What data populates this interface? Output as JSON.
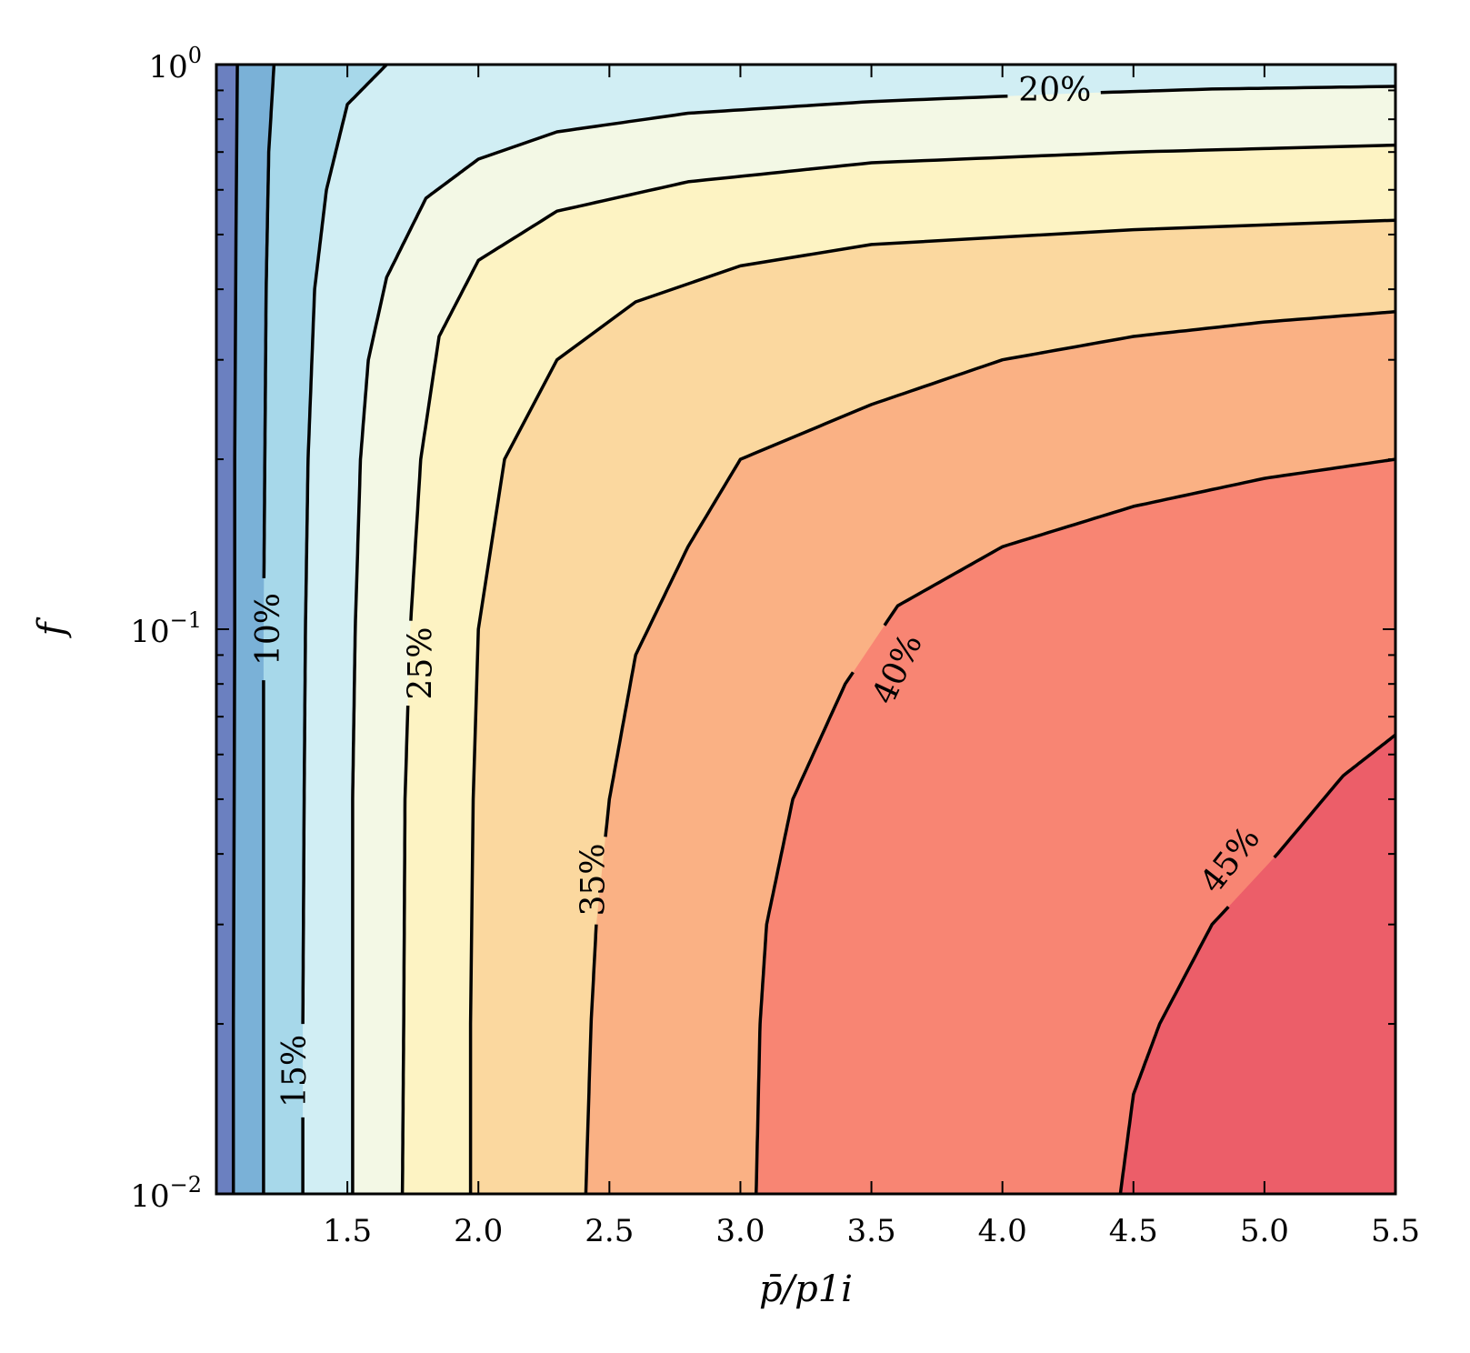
{
  "chart_data": {
    "type": "contour",
    "xlabel": "p̄/p1i",
    "ylabel": "f",
    "xlim": [
      1.0,
      5.5
    ],
    "ylim": [
      0.01,
      1.0
    ],
    "yscale": "log",
    "x_ticks": [
      1.5,
      2.0,
      2.5,
      3.0,
      3.5,
      4.0,
      4.5,
      5.0,
      5.5
    ],
    "x_tick_labels": [
      "1.5",
      "2.0",
      "2.5",
      "3.0",
      "3.5",
      "4.0",
      "4.5",
      "5.0",
      "5.5"
    ],
    "y_ticks": [
      0.01,
      0.1,
      1.0
    ],
    "y_tick_labels": [
      {
        "base": "10",
        "exp": "−2"
      },
      {
        "base": "10",
        "exp": "−1"
      },
      {
        "base": "10",
        "exp": "0"
      }
    ],
    "grid": false,
    "colors": {
      "lt5": "#6b80c0",
      "5-10": "#7ab1d7",
      "10-15": "#a7d8ea",
      "15-20": "#d1eef4",
      "20-25": "#f3f8e5",
      "25-30": "#fdf3c3",
      "30-35": "#fbd89f",
      "35-40": "#fab184",
      "40-45": "#f88573",
      "gt45": "#ec5e69"
    },
    "levels": [
      {
        "level": 5,
        "label": "",
        "points": [
          [
            1.08,
            1.0
          ],
          [
            1.075,
            0.5
          ],
          [
            1.07,
            0.2
          ],
          [
            1.07,
            0.1
          ],
          [
            1.068,
            0.05
          ],
          [
            1.065,
            0.02
          ],
          [
            1.065,
            0.01
          ]
        ]
      },
      {
        "level": 10,
        "label": "10%",
        "label_at": [
          1.2,
          0.1
        ],
        "label_angle": -90,
        "points": [
          [
            1.22,
            1.0
          ],
          [
            1.2,
            0.7
          ],
          [
            1.19,
            0.4
          ],
          [
            1.185,
            0.2
          ],
          [
            1.18,
            0.1
          ],
          [
            1.18,
            0.05
          ],
          [
            1.18,
            0.02
          ],
          [
            1.18,
            0.01
          ]
        ]
      },
      {
        "level": 15,
        "label": "15%",
        "label_at": [
          1.3,
          0.0165
        ],
        "label_angle": -90,
        "points": [
          [
            1.65,
            1.0
          ],
          [
            1.5,
            0.85
          ],
          [
            1.42,
            0.6
          ],
          [
            1.375,
            0.4
          ],
          [
            1.35,
            0.2
          ],
          [
            1.34,
            0.1
          ],
          [
            1.335,
            0.05
          ],
          [
            1.33,
            0.02
          ],
          [
            1.33,
            0.01
          ]
        ]
      },
      {
        "level": 20,
        "label": "20%",
        "label_at": [
          4.2,
          0.9
        ],
        "label_angle": 0,
        "points": [
          [
            5.5,
            0.915
          ],
          [
            4.8,
            0.905
          ],
          [
            4.3,
            0.89
          ],
          [
            3.5,
            0.86
          ],
          [
            2.8,
            0.82
          ],
          [
            2.3,
            0.76
          ],
          [
            2.0,
            0.68
          ],
          [
            1.8,
            0.58
          ],
          [
            1.65,
            0.42
          ],
          [
            1.58,
            0.3
          ],
          [
            1.55,
            0.2
          ],
          [
            1.53,
            0.1
          ],
          [
            1.52,
            0.05
          ],
          [
            1.52,
            0.02
          ],
          [
            1.52,
            0.01
          ]
        ]
      },
      {
        "level": 25,
        "label": "25%",
        "label_at": [
          1.78,
          0.087
        ],
        "label_angle": -90,
        "points": [
          [
            5.5,
            0.72
          ],
          [
            4.5,
            0.7
          ],
          [
            3.5,
            0.67
          ],
          [
            2.8,
            0.62
          ],
          [
            2.3,
            0.55
          ],
          [
            2.0,
            0.45
          ],
          [
            1.85,
            0.33
          ],
          [
            1.78,
            0.2
          ],
          [
            1.74,
            0.1
          ],
          [
            1.72,
            0.05
          ],
          [
            1.715,
            0.02
          ],
          [
            1.71,
            0.01
          ]
        ]
      },
      {
        "level": 30,
        "label": "",
        "points": [
          [
            5.5,
            0.53
          ],
          [
            4.5,
            0.51
          ],
          [
            3.5,
            0.48
          ],
          [
            3.0,
            0.44
          ],
          [
            2.6,
            0.38
          ],
          [
            2.3,
            0.3
          ],
          [
            2.1,
            0.2
          ],
          [
            2.0,
            0.1
          ],
          [
            1.98,
            0.05
          ],
          [
            1.97,
            0.02
          ],
          [
            1.97,
            0.01
          ]
        ]
      },
      {
        "level": 35,
        "label": "35%",
        "label_at": [
          2.44,
          0.036
        ],
        "label_angle": -90,
        "points": [
          [
            5.5,
            0.365
          ],
          [
            5.0,
            0.35
          ],
          [
            4.5,
            0.33
          ],
          [
            4.0,
            0.3
          ],
          [
            3.5,
            0.25
          ],
          [
            3.0,
            0.2
          ],
          [
            2.8,
            0.14
          ],
          [
            2.6,
            0.09
          ],
          [
            2.5,
            0.05
          ],
          [
            2.45,
            0.03
          ],
          [
            2.43,
            0.02
          ],
          [
            2.41,
            0.01
          ]
        ]
      },
      {
        "level": 40,
        "label": "40%",
        "label_at": [
          3.6,
          0.085
        ],
        "label_angle": -65,
        "points": [
          [
            5.5,
            0.2
          ],
          [
            5.0,
            0.185
          ],
          [
            4.5,
            0.165
          ],
          [
            4.0,
            0.14
          ],
          [
            3.6,
            0.11
          ],
          [
            3.4,
            0.08
          ],
          [
            3.2,
            0.05
          ],
          [
            3.1,
            0.03
          ],
          [
            3.075,
            0.02
          ],
          [
            3.06,
            0.01
          ]
        ]
      },
      {
        "level": 45,
        "label": "45%",
        "label_at": [
          4.87,
          0.039
        ],
        "label_angle": -52,
        "points": [
          [
            5.5,
            0.065
          ],
          [
            5.3,
            0.055
          ],
          [
            5.05,
            0.04
          ],
          [
            4.8,
            0.03
          ],
          [
            4.6,
            0.02
          ],
          [
            4.5,
            0.015
          ],
          [
            4.45,
            0.01
          ]
        ]
      }
    ]
  }
}
